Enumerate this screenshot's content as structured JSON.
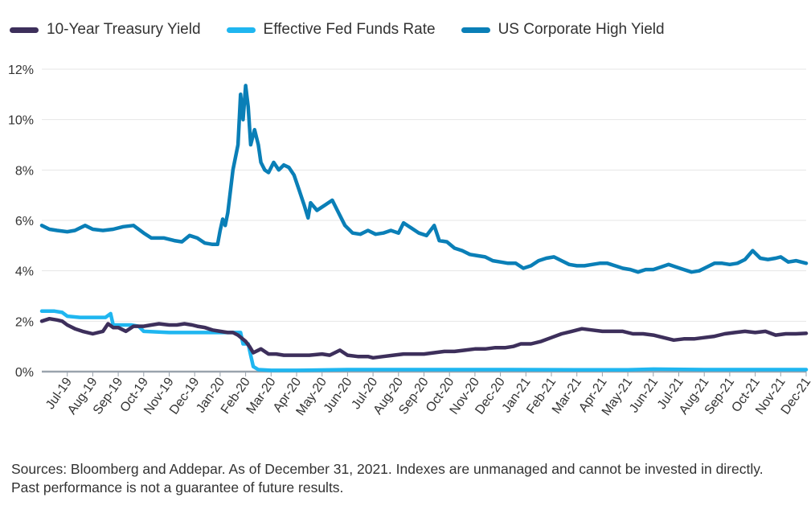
{
  "chart_data": {
    "type": "line",
    "title": "",
    "xlabel": "",
    "ylabel": "",
    "ylim": [
      0,
      12
    ],
    "y_ticks": [
      "0%",
      "2%",
      "4%",
      "6%",
      "8%",
      "10%",
      "12%"
    ],
    "y_tick_values": [
      0,
      2,
      4,
      6,
      8,
      10,
      12
    ],
    "x_range": [
      0,
      30
    ],
    "x_ticks": [
      "Jul-19",
      "Aug-19",
      "Sep-19",
      "Oct-19",
      "Nov-19",
      "Dec-19",
      "Jan-20",
      "Feb-20",
      "Mar-20",
      "Apr-20",
      "May-20",
      "Jun-20",
      "Jul-20",
      "Aug-20",
      "Sep-20",
      "Oct-20",
      "Nov-20",
      "Dec-20",
      "Jan-21",
      "Feb-21",
      "Mar-21",
      "Apr-21",
      "May-21",
      "Jun-21",
      "Jul-21",
      "Aug-21",
      "Sep-21",
      "Oct-21",
      "Nov-21",
      "Dec-21"
    ],
    "grid": "horizontal",
    "legend_position": "top-left",
    "series": [
      {
        "name": "10-Year Treasury Yield",
        "color": "#3d2f5b",
        "points": [
          [
            0,
            2.0
          ],
          [
            0.3,
            2.1
          ],
          [
            0.6,
            2.05
          ],
          [
            0.8,
            2.0
          ],
          [
            1.0,
            1.85
          ],
          [
            1.3,
            1.7
          ],
          [
            1.6,
            1.6
          ],
          [
            2.0,
            1.5
          ],
          [
            2.4,
            1.6
          ],
          [
            2.6,
            1.9
          ],
          [
            2.8,
            1.75
          ],
          [
            3.0,
            1.75
          ],
          [
            3.3,
            1.6
          ],
          [
            3.6,
            1.8
          ],
          [
            4.0,
            1.8
          ],
          [
            4.3,
            1.85
          ],
          [
            4.6,
            1.9
          ],
          [
            5.0,
            1.85
          ],
          [
            5.3,
            1.85
          ],
          [
            5.6,
            1.9
          ],
          [
            5.9,
            1.85
          ],
          [
            6.1,
            1.8
          ],
          [
            6.4,
            1.75
          ],
          [
            6.7,
            1.65
          ],
          [
            7.0,
            1.6
          ],
          [
            7.3,
            1.55
          ],
          [
            7.5,
            1.55
          ],
          [
            7.7,
            1.45
          ],
          [
            8.0,
            1.2
          ],
          [
            8.15,
            1.0
          ],
          [
            8.3,
            0.75
          ],
          [
            8.6,
            0.9
          ],
          [
            8.9,
            0.7
          ],
          [
            9.2,
            0.7
          ],
          [
            9.5,
            0.65
          ],
          [
            9.8,
            0.65
          ],
          [
            10.2,
            0.65
          ],
          [
            10.5,
            0.65
          ],
          [
            11.0,
            0.7
          ],
          [
            11.3,
            0.65
          ],
          [
            11.7,
            0.85
          ],
          [
            12.0,
            0.65
          ],
          [
            12.4,
            0.6
          ],
          [
            12.8,
            0.6
          ],
          [
            13.0,
            0.55
          ],
          [
            13.4,
            0.6
          ],
          [
            13.8,
            0.65
          ],
          [
            14.2,
            0.7
          ],
          [
            14.6,
            0.7
          ],
          [
            15.0,
            0.7
          ],
          [
            15.4,
            0.75
          ],
          [
            15.8,
            0.8
          ],
          [
            16.2,
            0.8
          ],
          [
            16.6,
            0.85
          ],
          [
            17.0,
            0.9
          ],
          [
            17.4,
            0.9
          ],
          [
            17.8,
            0.95
          ],
          [
            18.2,
            0.95
          ],
          [
            18.5,
            1.0
          ],
          [
            18.8,
            1.1
          ],
          [
            19.2,
            1.1
          ],
          [
            19.6,
            1.2
          ],
          [
            20.0,
            1.35
          ],
          [
            20.4,
            1.5
          ],
          [
            20.8,
            1.6
          ],
          [
            21.2,
            1.7
          ],
          [
            21.6,
            1.65
          ],
          [
            22.0,
            1.6
          ],
          [
            22.4,
            1.6
          ],
          [
            22.8,
            1.6
          ],
          [
            23.2,
            1.5
          ],
          [
            23.6,
            1.5
          ],
          [
            24.0,
            1.45
          ],
          [
            24.4,
            1.35
          ],
          [
            24.8,
            1.25
          ],
          [
            25.2,
            1.3
          ],
          [
            25.6,
            1.3
          ],
          [
            26.0,
            1.35
          ],
          [
            26.4,
            1.4
          ],
          [
            26.8,
            1.5
          ],
          [
            27.2,
            1.55
          ],
          [
            27.6,
            1.6
          ],
          [
            28.0,
            1.55
          ],
          [
            28.4,
            1.6
          ],
          [
            28.8,
            1.45
          ],
          [
            29.2,
            1.5
          ],
          [
            29.6,
            1.5
          ],
          [
            30.0,
            1.52
          ]
        ]
      },
      {
        "name": "Effective Fed Funds Rate",
        "color": "#1fb6f0",
        "points": [
          [
            0,
            2.4
          ],
          [
            0.5,
            2.4
          ],
          [
            0.8,
            2.35
          ],
          [
            1.0,
            2.2
          ],
          [
            1.5,
            2.15
          ],
          [
            2.0,
            2.15
          ],
          [
            2.5,
            2.15
          ],
          [
            2.7,
            2.3
          ],
          [
            2.8,
            1.85
          ],
          [
            3.5,
            1.85
          ],
          [
            3.8,
            1.8
          ],
          [
            4.0,
            1.6
          ],
          [
            5.0,
            1.55
          ],
          [
            6.0,
            1.55
          ],
          [
            7.0,
            1.55
          ],
          [
            7.5,
            1.55
          ],
          [
            7.8,
            1.55
          ],
          [
            7.9,
            1.1
          ],
          [
            8.1,
            1.1
          ],
          [
            8.2,
            0.65
          ],
          [
            8.3,
            0.2
          ],
          [
            8.5,
            0.08
          ],
          [
            9.0,
            0.05
          ],
          [
            10.0,
            0.05
          ],
          [
            12.0,
            0.08
          ],
          [
            15.0,
            0.08
          ],
          [
            18.0,
            0.08
          ],
          [
            21.0,
            0.07
          ],
          [
            23.0,
            0.07
          ],
          [
            24.0,
            0.1
          ],
          [
            26.0,
            0.08
          ],
          [
            28.0,
            0.08
          ],
          [
            30.0,
            0.08
          ]
        ]
      },
      {
        "name": "US Corporate High Yield",
        "color": "#0a7fb7",
        "points": [
          [
            0,
            5.8
          ],
          [
            0.3,
            5.65
          ],
          [
            0.6,
            5.6
          ],
          [
            1.0,
            5.55
          ],
          [
            1.3,
            5.6
          ],
          [
            1.7,
            5.8
          ],
          [
            2.0,
            5.65
          ],
          [
            2.4,
            5.6
          ],
          [
            2.8,
            5.65
          ],
          [
            3.2,
            5.75
          ],
          [
            3.6,
            5.8
          ],
          [
            4.0,
            5.5
          ],
          [
            4.3,
            5.3
          ],
          [
            4.8,
            5.3
          ],
          [
            5.2,
            5.2
          ],
          [
            5.5,
            5.15
          ],
          [
            5.8,
            5.4
          ],
          [
            6.1,
            5.3
          ],
          [
            6.4,
            5.1
          ],
          [
            6.7,
            5.05
          ],
          [
            6.9,
            5.05
          ],
          [
            7.0,
            5.6
          ],
          [
            7.1,
            6.05
          ],
          [
            7.2,
            5.8
          ],
          [
            7.3,
            6.3
          ],
          [
            7.5,
            8.0
          ],
          [
            7.7,
            9.0
          ],
          [
            7.8,
            11.0
          ],
          [
            7.9,
            10.0
          ],
          [
            8.0,
            11.35
          ],
          [
            8.1,
            10.5
          ],
          [
            8.2,
            9.0
          ],
          [
            8.35,
            9.6
          ],
          [
            8.5,
            9.0
          ],
          [
            8.6,
            8.3
          ],
          [
            8.75,
            8.0
          ],
          [
            8.9,
            7.9
          ],
          [
            9.1,
            8.3
          ],
          [
            9.3,
            8.0
          ],
          [
            9.5,
            8.2
          ],
          [
            9.7,
            8.1
          ],
          [
            9.9,
            7.8
          ],
          [
            10.1,
            7.2
          ],
          [
            10.3,
            6.6
          ],
          [
            10.45,
            6.1
          ],
          [
            10.55,
            6.7
          ],
          [
            10.8,
            6.4
          ],
          [
            11.1,
            6.6
          ],
          [
            11.4,
            6.8
          ],
          [
            11.6,
            6.4
          ],
          [
            11.9,
            5.8
          ],
          [
            12.2,
            5.5
          ],
          [
            12.5,
            5.45
          ],
          [
            12.8,
            5.6
          ],
          [
            13.1,
            5.45
          ],
          [
            13.4,
            5.5
          ],
          [
            13.7,
            5.6
          ],
          [
            14.0,
            5.5
          ],
          [
            14.2,
            5.9
          ],
          [
            14.5,
            5.7
          ],
          [
            14.8,
            5.5
          ],
          [
            15.1,
            5.4
          ],
          [
            15.4,
            5.8
          ],
          [
            15.6,
            5.2
          ],
          [
            15.9,
            5.15
          ],
          [
            16.2,
            4.9
          ],
          [
            16.5,
            4.8
          ],
          [
            16.8,
            4.65
          ],
          [
            17.1,
            4.6
          ],
          [
            17.4,
            4.55
          ],
          [
            17.7,
            4.4
          ],
          [
            18.0,
            4.35
          ],
          [
            18.3,
            4.3
          ],
          [
            18.6,
            4.3
          ],
          [
            18.9,
            4.1
          ],
          [
            19.2,
            4.2
          ],
          [
            19.5,
            4.4
          ],
          [
            19.8,
            4.5
          ],
          [
            20.1,
            4.55
          ],
          [
            20.4,
            4.4
          ],
          [
            20.7,
            4.25
          ],
          [
            21.0,
            4.2
          ],
          [
            21.3,
            4.2
          ],
          [
            21.6,
            4.25
          ],
          [
            21.9,
            4.3
          ],
          [
            22.2,
            4.3
          ],
          [
            22.5,
            4.2
          ],
          [
            22.8,
            4.1
          ],
          [
            23.1,
            4.05
          ],
          [
            23.4,
            3.95
          ],
          [
            23.7,
            4.05
          ],
          [
            24.0,
            4.05
          ],
          [
            24.3,
            4.15
          ],
          [
            24.6,
            4.25
          ],
          [
            24.9,
            4.15
          ],
          [
            25.2,
            4.05
          ],
          [
            25.5,
            3.95
          ],
          [
            25.8,
            4.0
          ],
          [
            26.1,
            4.15
          ],
          [
            26.4,
            4.3
          ],
          [
            26.7,
            4.3
          ],
          [
            27.0,
            4.25
          ],
          [
            27.3,
            4.3
          ],
          [
            27.6,
            4.45
          ],
          [
            27.9,
            4.8
          ],
          [
            28.2,
            4.5
          ],
          [
            28.5,
            4.45
          ],
          [
            28.8,
            4.5
          ],
          [
            29.0,
            4.55
          ],
          [
            29.3,
            4.35
          ],
          [
            29.6,
            4.4
          ],
          [
            30.0,
            4.3
          ]
        ]
      }
    ]
  },
  "footnote": "Sources: Bloomberg and Addepar. As of December 31, 2021. Indexes are unmanaged and cannot be invested in directly. Past performance is not a guarantee of future results."
}
